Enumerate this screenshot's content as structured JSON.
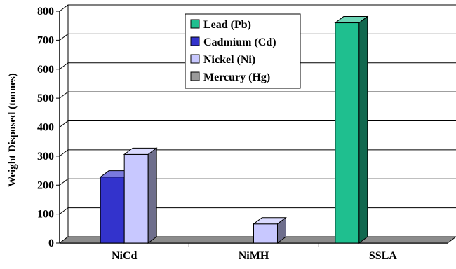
{
  "chart_data": {
    "type": "bar",
    "title": "",
    "xlabel": "",
    "ylabel": "Weight Disposed (tonnes)",
    "ylim": [
      0,
      800
    ],
    "yticks": [
      0,
      100,
      200,
      300,
      400,
      500,
      600,
      700,
      800
    ],
    "categories": [
      "NiCd",
      "NiMH",
      "SSLA"
    ],
    "grid": true,
    "legend_position": "top-center",
    "style": "3d-column",
    "series": [
      {
        "name": "Lead (Pb)",
        "color": "#1FBF8F",
        "values": [
          0,
          0,
          760
        ]
      },
      {
        "name": "Cadmium (Cd)",
        "color": "#3333CC",
        "values": [
          228,
          0,
          0
        ]
      },
      {
        "name": "Nickel (Ni)",
        "color": "#C8C8FF",
        "values": [
          306,
          66,
          0
        ]
      },
      {
        "name": "Mercury (Hg)",
        "color": "#9A9A9A",
        "values": [
          0,
          0,
          0
        ]
      }
    ]
  }
}
